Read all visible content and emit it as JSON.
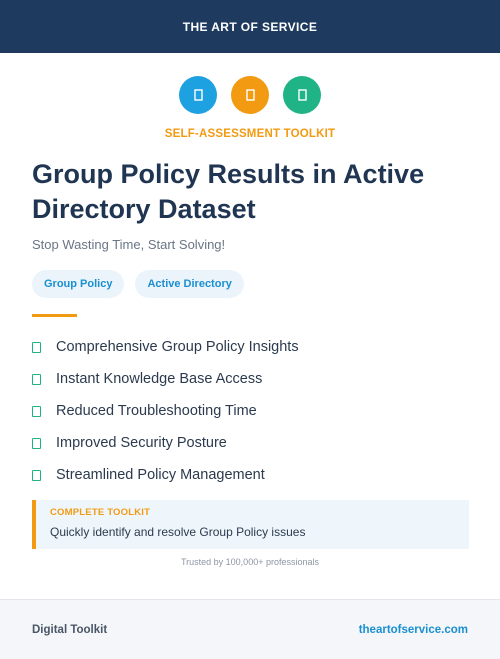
{
  "header": {
    "brand": "THE ART OF SERVICE"
  },
  "icons": [
    {
      "name": "tool-icon",
      "color": "#1ea1e0"
    },
    {
      "name": "tool-icon",
      "color": "#f29a12"
    },
    {
      "name": "tool-icon",
      "color": "#1fb386"
    }
  ],
  "eyebrow": "SELF-ASSESSMENT TOOLKIT",
  "title": {
    "line1": "Group Policy Results in Active",
    "line2": "Directory Dataset"
  },
  "subtitle": "Stop Wasting Time, Start Solving!",
  "tags": [
    "Group Policy",
    "Active Directory"
  ],
  "features": [
    "Comprehensive Group Policy Insights",
    "Instant Knowledge Base Access",
    "Reduced Troubleshooting Time",
    "Improved Security Posture",
    "Streamlined Policy Management"
  ],
  "callout": {
    "label": "COMPLETE TOOLKIT",
    "text": "Quickly identify and resolve Group Policy issues"
  },
  "trusted": "Trusted by 100,000+ professionals",
  "footer": {
    "left": "Digital Toolkit",
    "right": "theartofservice.com"
  },
  "colors": {
    "navy": "#1e3a5f",
    "orange": "#f29a12",
    "blue": "#1ea1e0",
    "green": "#1fb386",
    "link": "#1a8fd0"
  }
}
